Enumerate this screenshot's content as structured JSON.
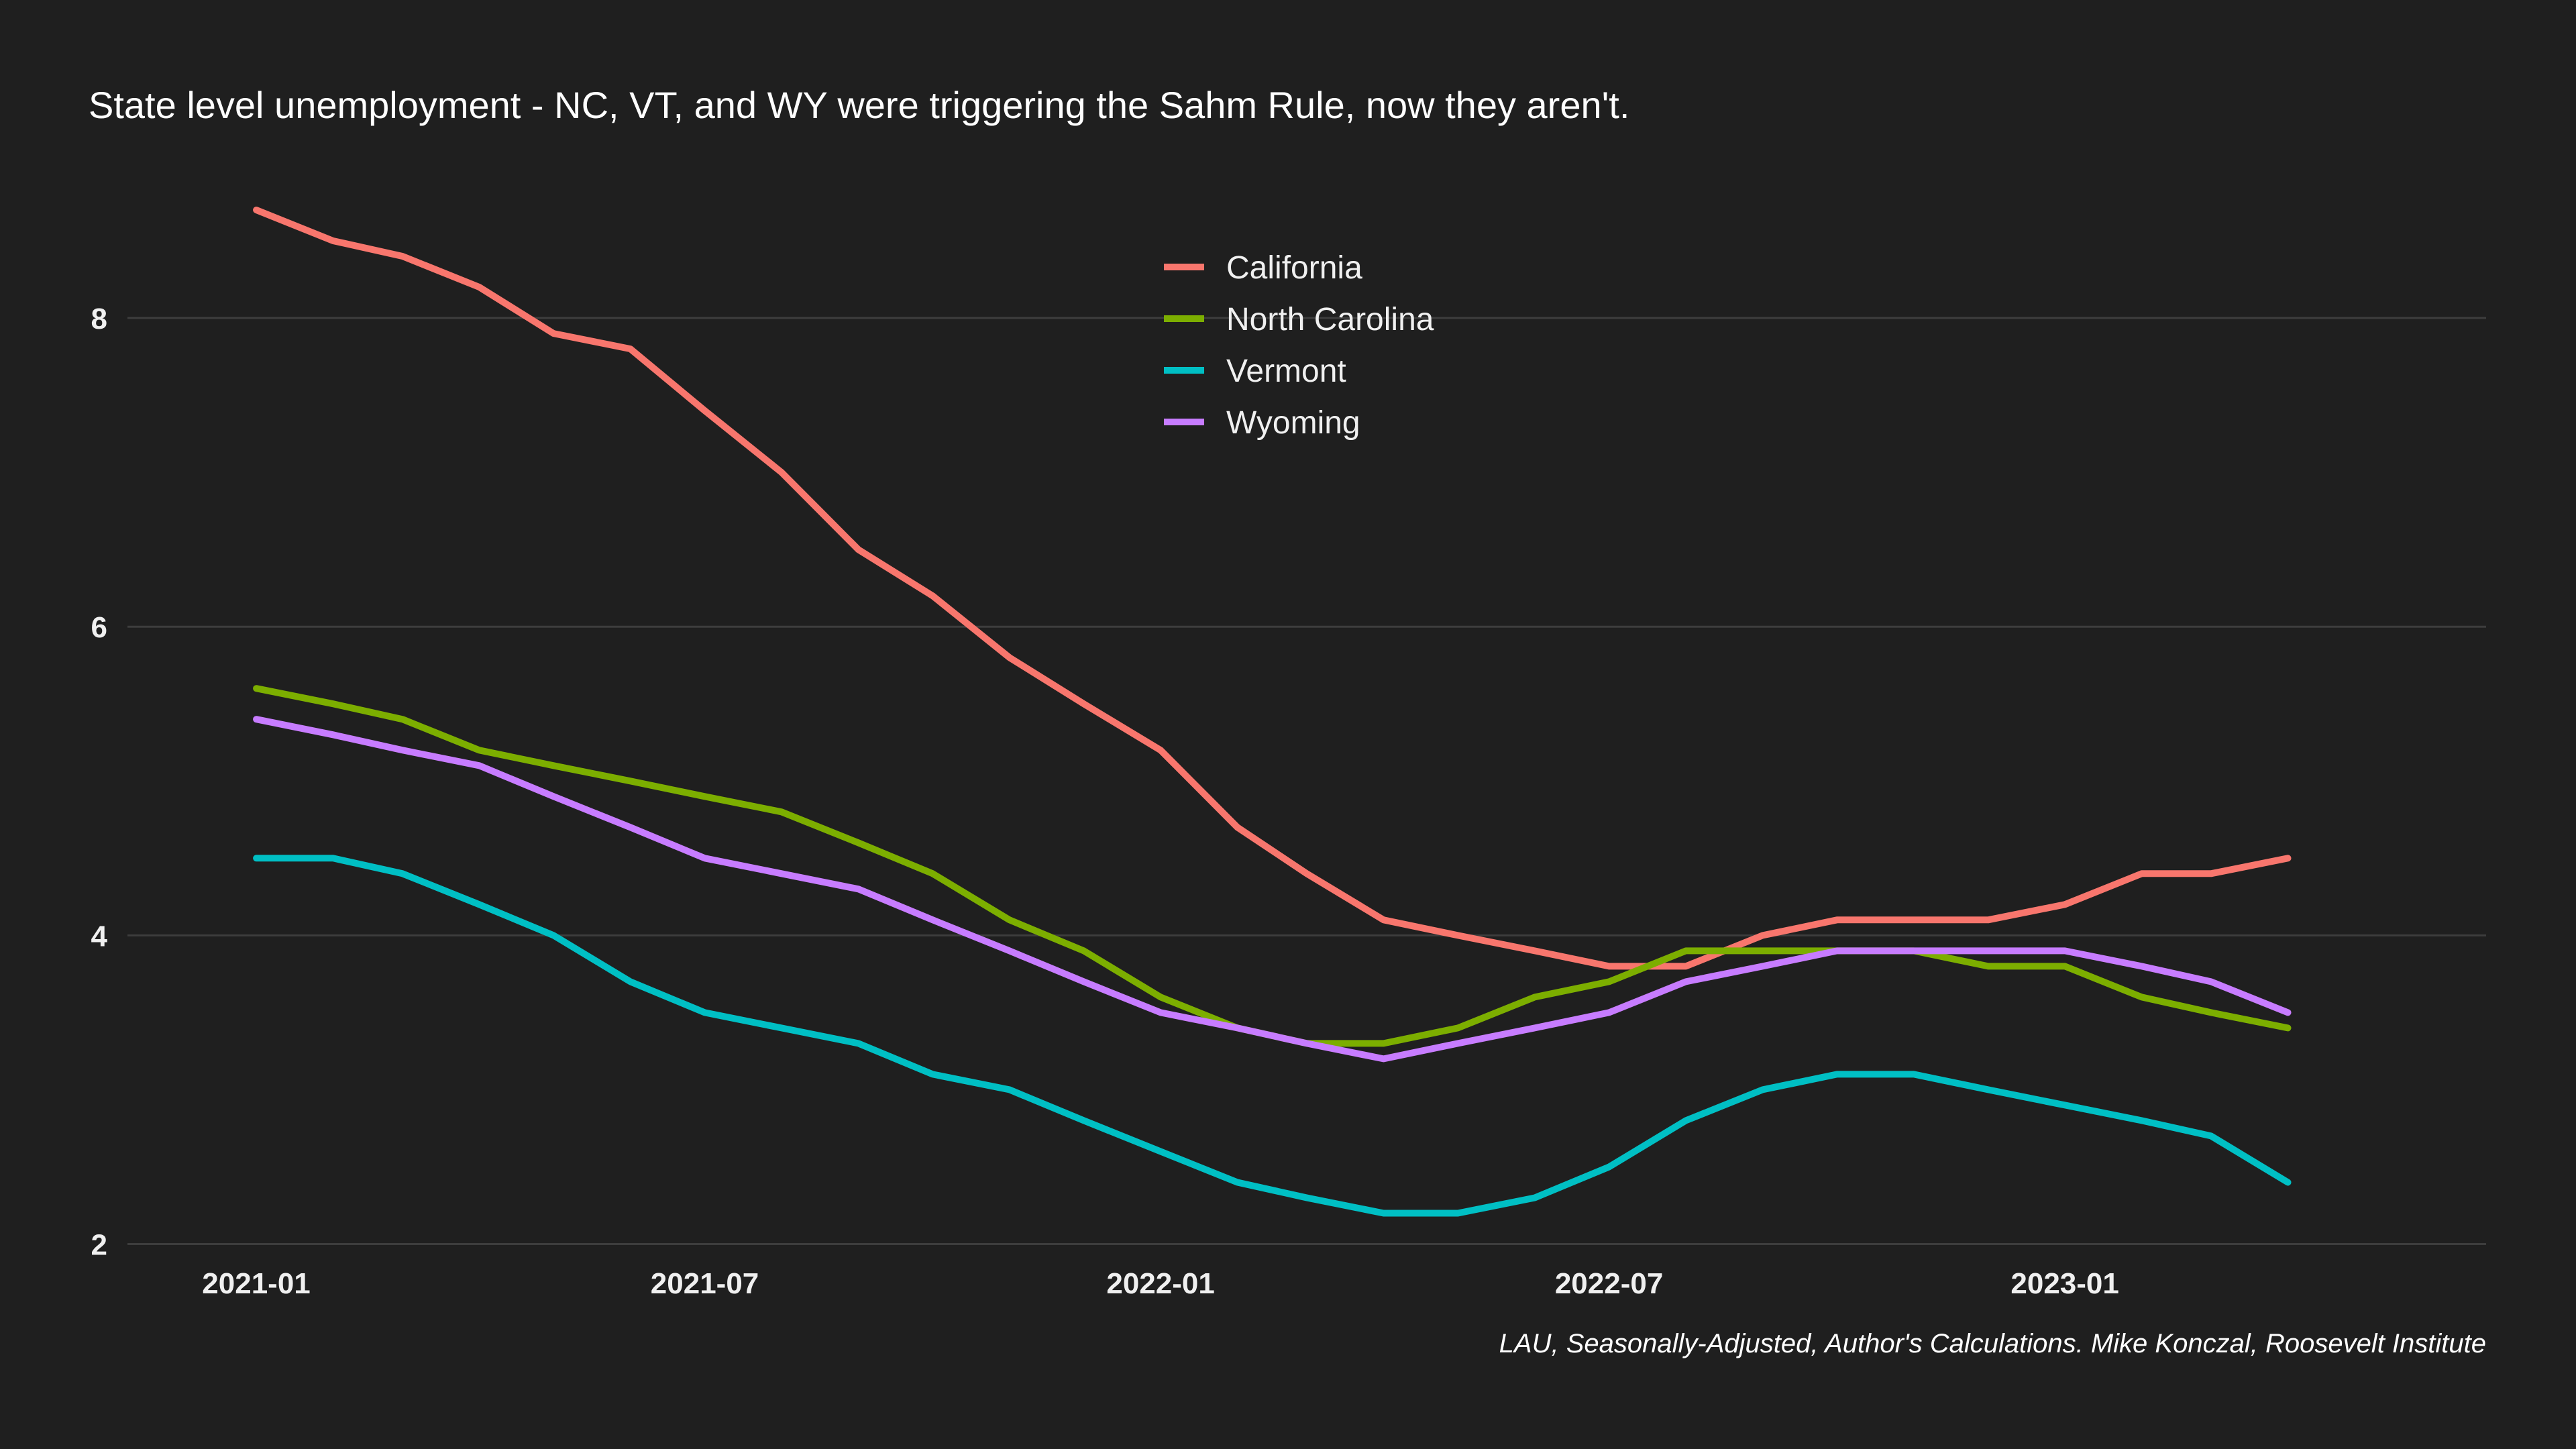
{
  "chart_data": {
    "type": "line",
    "title": "State level unemployment - NC, VT, and WY were triggering the Sahm Rule, now they aren't.",
    "caption": "LAU, Seasonally-Adjusted, Author's Calculations. Mike Konczal, Roosevelt Institute",
    "xlabel": "",
    "ylabel": "",
    "x": [
      "2021-01",
      "2021-02",
      "2021-03",
      "2021-04",
      "2021-05",
      "2021-06",
      "2021-07",
      "2021-08",
      "2021-09",
      "2021-10",
      "2021-11",
      "2021-12",
      "2022-01",
      "2022-02",
      "2022-03",
      "2022-04",
      "2022-05",
      "2022-06",
      "2022-07",
      "2022-08",
      "2022-09",
      "2022-10",
      "2022-11",
      "2022-12",
      "2023-01",
      "2023-02",
      "2023-03",
      "2023-04"
    ],
    "x_ticks": [
      "2021-01",
      "2021-07",
      "2022-01",
      "2022-07",
      "2023-01"
    ],
    "y_ticks": [
      2,
      4,
      6,
      8
    ],
    "ylim": [
      1.95,
      8.8
    ],
    "xlim": [
      "2020-11-10",
      "2023-06-20"
    ],
    "grid": true,
    "legend_position": "top-center",
    "series": [
      {
        "name": "California",
        "color": "#f8766d",
        "values": [
          8.7,
          8.5,
          8.4,
          8.2,
          7.9,
          7.8,
          7.4,
          7.0,
          6.5,
          6.2,
          5.8,
          5.5,
          5.2,
          4.7,
          4.4,
          4.1,
          4.0,
          3.9,
          3.8,
          3.8,
          4.0,
          4.1,
          4.1,
          4.1,
          4.2,
          4.4,
          4.4,
          4.5
        ]
      },
      {
        "name": "North Carolina",
        "color": "#7cae00",
        "values": [
          5.6,
          5.5,
          5.4,
          5.2,
          5.1,
          5.0,
          4.9,
          4.8,
          4.6,
          4.4,
          4.1,
          3.9,
          3.6,
          3.4,
          3.3,
          3.3,
          3.4,
          3.6,
          3.7,
          3.9,
          3.9,
          3.9,
          3.9,
          3.8,
          3.8,
          3.6,
          3.5,
          3.4
        ]
      },
      {
        "name": "Vermont",
        "color": "#00bfc4",
        "values": [
          4.5,
          4.5,
          4.4,
          4.2,
          4.0,
          3.7,
          3.5,
          3.4,
          3.3,
          3.1,
          3.0,
          2.8,
          2.6,
          2.4,
          2.3,
          2.2,
          2.2,
          2.3,
          2.5,
          2.8,
          3.0,
          3.1,
          3.1,
          3.0,
          2.9,
          2.8,
          2.7,
          2.4
        ]
      },
      {
        "name": "Wyoming",
        "color": "#c77cff",
        "values": [
          5.4,
          5.3,
          5.2,
          5.1,
          4.9,
          4.7,
          4.5,
          4.4,
          4.3,
          4.1,
          3.9,
          3.7,
          3.5,
          3.4,
          3.3,
          3.2,
          3.3,
          3.4,
          3.5,
          3.7,
          3.8,
          3.9,
          3.9,
          3.9,
          3.9,
          3.8,
          3.7,
          3.5
        ]
      }
    ]
  }
}
